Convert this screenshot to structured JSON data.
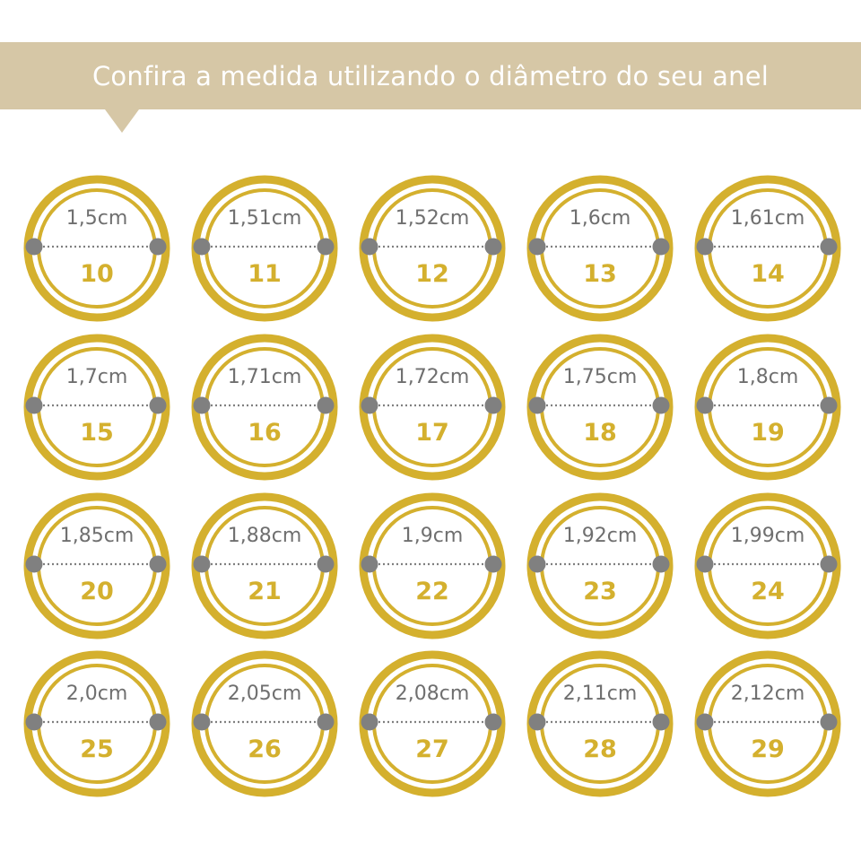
{
  "header": {
    "title": "Confira a medida utilizando o diâmetro do seu anel"
  },
  "colors": {
    "banner": "#d6c7a6",
    "gold": "#d4b02e",
    "gray_dot": "#808080",
    "gray_text": "#6f6f6f"
  },
  "rings": [
    {
      "diameter": "1,5cm",
      "size": "10"
    },
    {
      "diameter": "1,51cm",
      "size": "11"
    },
    {
      "diameter": "1,52cm",
      "size": "12"
    },
    {
      "diameter": "1,6cm",
      "size": "13"
    },
    {
      "diameter": "1,61cm",
      "size": "14"
    },
    {
      "diameter": "1,7cm",
      "size": "15"
    },
    {
      "diameter": "1,71cm",
      "size": "16"
    },
    {
      "diameter": "1,72cm",
      "size": "17"
    },
    {
      "diameter": "1,75cm",
      "size": "18"
    },
    {
      "diameter": "1,8cm",
      "size": "19"
    },
    {
      "diameter": "1,85cm",
      "size": "20"
    },
    {
      "diameter": "1,88cm",
      "size": "21"
    },
    {
      "diameter": "1,9cm",
      "size": "22"
    },
    {
      "diameter": "1,92cm",
      "size": "23"
    },
    {
      "diameter": "1,99cm",
      "size": "24"
    },
    {
      "diameter": "2,0cm",
      "size": "25"
    },
    {
      "diameter": "2,05cm",
      "size": "26"
    },
    {
      "diameter": "2,08cm",
      "size": "27"
    },
    {
      "diameter": "2,11cm",
      "size": "28"
    },
    {
      "diameter": "2,12cm",
      "size": "29"
    }
  ]
}
